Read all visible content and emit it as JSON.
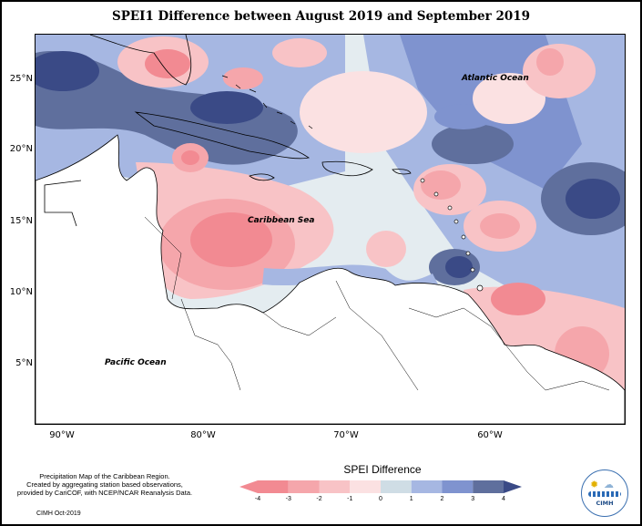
{
  "title": "SPEI1 Difference between August 2019 and September 2019",
  "lat_labels": [
    "25°N",
    "20°N",
    "15°N",
    "10°N",
    "5°N"
  ],
  "lon_labels": [
    "90°W",
    "80°W",
    "70°W",
    "60°W"
  ],
  "map_labels": {
    "atlantic": "Atlantic Ocean",
    "caribbean": "Caribbean Sea",
    "pacific": "Pacific Ocean"
  },
  "legend": {
    "title": "SPEI Difference",
    "ticks": [
      "-4",
      "-3",
      "-2",
      "-1",
      "0",
      "1",
      "2",
      "3",
      "4"
    ],
    "colors": [
      "#f28a92",
      "#f5a6ab",
      "#f8c3c6",
      "#fbe1e2",
      "#cfdde5",
      "#a6b7e2",
      "#7f93cf",
      "#5f6f9d",
      "#3a4a86"
    ]
  },
  "caption": {
    "line1": "Precipitation Map of the Caribbean Region.",
    "line2": "Created by aggregating station based observations,",
    "line3": "provided by CariCOF, with NCEP/NCAR Reanalysis Data."
  },
  "credit": "CIMH Oct-2019",
  "logo_text": "CIMH"
}
